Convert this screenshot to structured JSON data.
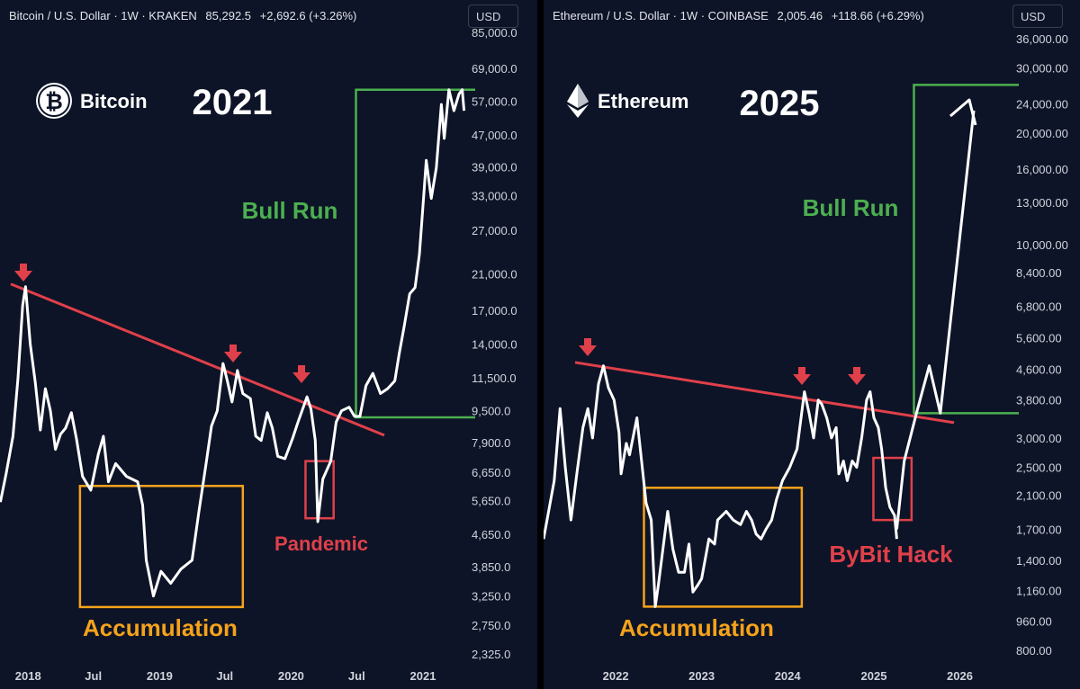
{
  "left": {
    "header": {
      "symbol": "Bitcoin / U.S. Dollar · 1W · KRAKEN",
      "price": "85,292.5",
      "change": "+2,692.6 (+3.26%)"
    },
    "currency_button": "USD",
    "brand_name": "Bitcoin",
    "brand_symbol": "₿",
    "year_title": "2021",
    "colors": {
      "price_line": "#ffffff",
      "trend_line": "#e0404a",
      "bull_box": "#4caf50",
      "accum_box": "#f5a21b",
      "event_box": "#e0404a"
    }
  },
  "right": {
    "header": {
      "symbol": "Ethereum / U.S. Dollar · 1W · COINBASE",
      "price": "2,005.46",
      "change": "+118.66 (+6.29%)"
    },
    "currency_button": "USD",
    "brand_name": "Ethereum",
    "year_title": "2025",
    "colors": {
      "price_line": "#ffffff",
      "trend_line": "#e0404a",
      "bull_box": "#4caf50",
      "accum_box": "#f5a21b",
      "event_box": "#e0404a"
    }
  },
  "chart_data": [
    {
      "type": "line",
      "scale": "log",
      "ylim": [
        2325,
        85000
      ],
      "xlim": [
        "2017-10-15",
        "2021-05-01"
      ],
      "x_ticks": [
        {
          "label": "2018",
          "date": "2018-01-01"
        },
        {
          "label": "Jul",
          "date": "2018-07-01"
        },
        {
          "label": "2019",
          "date": "2019-01-01"
        },
        {
          "label": "Jul",
          "date": "2019-07-01"
        },
        {
          "label": "2020",
          "date": "2020-01-01"
        },
        {
          "label": "Jul",
          "date": "2020-07-01"
        },
        {
          "label": "2021",
          "date": "2021-01-01"
        }
      ],
      "y_ticks": [
        "85,000.0",
        "69,000.0",
        "57,000.0",
        "47,000.0",
        "39,000.0",
        "33,000.0",
        "27,000.0",
        "21,000.0",
        "17,000.0",
        "14,000.0",
        "11,500.0",
        "9,500.0",
        "7,900.0",
        "6,650.0",
        "5,650.0",
        "4,650.0",
        "3,850.0",
        "3,250.0",
        "2,750.0",
        "2,325.0"
      ],
      "series": [
        {
          "x": [
            "2017-10-16",
            "2017-11-01",
            "2017-11-20",
            "2017-12-04",
            "2017-12-17",
            "2017-12-25",
            "2018-01-07",
            "2018-01-21",
            "2018-02-04",
            "2018-02-18",
            "2018-03-04",
            "2018-03-18",
            "2018-04-01",
            "2018-04-15",
            "2018-05-01",
            "2018-05-15",
            "2018-06-01",
            "2018-06-24",
            "2018-07-15",
            "2018-07-29",
            "2018-08-12",
            "2018-09-01",
            "2018-10-01",
            "2018-11-01",
            "2018-11-15",
            "2018-11-25",
            "2018-12-15",
            "2019-01-05",
            "2019-02-01",
            "2019-03-01",
            "2019-04-01",
            "2019-04-20",
            "2019-05-10",
            "2019-05-25",
            "2019-06-10",
            "2019-06-26",
            "2019-07-08",
            "2019-07-21",
            "2019-08-05",
            "2019-08-20",
            "2019-09-10",
            "2019-09-25",
            "2019-10-10",
            "2019-10-27",
            "2019-11-10",
            "2019-11-25",
            "2019-12-15",
            "2020-01-05",
            "2020-01-20",
            "2020-02-14",
            "2020-02-25",
            "2020-03-08",
            "2020-03-15",
            "2020-03-29",
            "2020-04-20",
            "2020-05-05",
            "2020-05-20",
            "2020-06-10",
            "2020-06-25",
            "2020-07-10",
            "2020-07-27",
            "2020-08-15",
            "2020-09-05",
            "2020-09-25",
            "2020-10-15",
            "2020-10-27",
            "2020-11-10",
            "2020-11-25",
            "2020-12-10",
            "2020-12-22",
            "2021-01-03",
            "2021-01-10",
            "2021-01-24",
            "2021-02-07",
            "2021-02-21",
            "2021-03-01",
            "2021-03-14",
            "2021-03-28",
            "2021-04-11",
            "2021-04-20",
            "2021-04-25"
          ],
          "y": [
            5600,
            6600,
            8200,
            11500,
            17500,
            19500,
            14000,
            11200,
            8500,
            10800,
            9500,
            7600,
            8300,
            8600,
            9400,
            8100,
            6500,
            6000,
            7400,
            8200,
            6300,
            7000,
            6500,
            6300,
            5500,
            4000,
            3250,
            3750,
            3500,
            3800,
            4000,
            5300,
            7000,
            8700,
            9500,
            12500,
            11300,
            10000,
            12000,
            10500,
            10200,
            8200,
            8000,
            9400,
            8600,
            7300,
            7200,
            8100,
            8900,
            10300,
            9600,
            8000,
            5000,
            6400,
            7100,
            8900,
            9500,
            9700,
            9200,
            9200,
            11000,
            11800,
            10500,
            10800,
            11300,
            13200,
            15500,
            18700,
            19400,
            23500,
            33000,
            40500,
            32500,
            38800,
            56000,
            46000,
            61000,
            54000,
            59500,
            61000,
            54000
          ]
        }
      ]
    },
    {
      "type": "line",
      "scale": "log",
      "ylim": [
        800,
        36000
      ],
      "xlim": [
        "2021-03-01",
        "2026-08-01"
      ],
      "x_ticks": [
        {
          "label": "2022",
          "date": "2022-01-01"
        },
        {
          "label": "2023",
          "date": "2023-01-01"
        },
        {
          "label": "2024",
          "date": "2024-01-01"
        },
        {
          "label": "2025",
          "date": "2025-01-01"
        },
        {
          "label": "2026",
          "date": "2026-01-01"
        }
      ],
      "y_ticks": [
        "36,000.00",
        "30,000.00",
        "24,000.00",
        "20,000.00",
        "16,000.00",
        "13,000.00",
        "10,000.00",
        "8,400.00",
        "6,800.00",
        "5,600.00",
        "4,600.00",
        "3,800.00",
        "3,000.00",
        "2,500.00",
        "2,100.00",
        "1,700.00",
        "1,400.00",
        "1,160.00",
        "960.00",
        "800.00"
      ],
      "series": [
        {
          "x": [
            "2021-03-01",
            "2021-04-15",
            "2021-05-10",
            "2021-06-01",
            "2021-06-25",
            "2021-07-20",
            "2021-08-15",
            "2021-09-05",
            "2021-09-25",
            "2021-10-20",
            "2021-11-10",
            "2021-12-01",
            "2021-12-25",
            "2022-01-15",
            "2022-01-24",
            "2022-02-15",
            "2022-03-01",
            "2022-04-01",
            "2022-05-10",
            "2022-06-01",
            "2022-06-18",
            "2022-07-01",
            "2022-08-10",
            "2022-09-01",
            "2022-09-25",
            "2022-10-20",
            "2022-11-08",
            "2022-11-25",
            "2022-12-15",
            "2023-01-01",
            "2023-02-01",
            "2023-02-25",
            "2023-03-10",
            "2023-04-15",
            "2023-05-15",
            "2023-06-15",
            "2023-07-10",
            "2023-08-01",
            "2023-08-20",
            "2023-09-10",
            "2023-10-01",
            "2023-10-25",
            "2023-11-15",
            "2023-12-10",
            "2024-01-10",
            "2024-02-10",
            "2024-03-12",
            "2024-04-01",
            "2024-04-20",
            "2024-05-10",
            "2024-05-25",
            "2024-06-15",
            "2024-07-05",
            "2024-07-25",
            "2024-08-05",
            "2024-08-25",
            "2024-09-10",
            "2024-10-01",
            "2024-10-20",
            "2024-11-10",
            "2024-12-01",
            "2024-12-16",
            "2025-01-01",
            "2025-01-20",
            "2025-02-03",
            "2025-02-20",
            "2025-03-10",
            "2025-03-30",
            "2025-04-08"
          ],
          "y": [
            1600,
            2300,
            3600,
            2500,
            1800,
            2400,
            3200,
            3600,
            3000,
            4200,
            4700,
            4100,
            3800,
            3100,
            2400,
            2900,
            2700,
            3400,
            2000,
            1800,
            1050,
            1200,
            1900,
            1500,
            1300,
            1300,
            1550,
            1150,
            1200,
            1250,
            1600,
            1550,
            1800,
            1900,
            1800,
            1750,
            1900,
            1800,
            1650,
            1600,
            1700,
            1800,
            2050,
            2300,
            2500,
            2800,
            4000,
            3500,
            3000,
            3800,
            3700,
            3400,
            3000,
            3200,
            2400,
            2600,
            2300,
            2600,
            2500,
            3000,
            3800,
            4000,
            3400,
            3200,
            2800,
            2200,
            1950,
            1850,
            1600
          ]
        },
        {
          "x": [
            "2025-04-08",
            "2025-05-10",
            "2025-07-01",
            "2025-08-24",
            "2025-10-10",
            "2026-03-01"
          ],
          "y": [
            1700,
            2600,
            3500,
            4700,
            3500,
            23000
          ]
        }
      ]
    }
  ],
  "annotations": {
    "left": {
      "bull_run": "Bull Run",
      "accumulation": "Accumulation",
      "pandemic": "Pandemic"
    },
    "right": {
      "bull_run": "Bull Run",
      "accumulation": "Accumulation",
      "bybit_hack": "ByBit Hack"
    }
  }
}
